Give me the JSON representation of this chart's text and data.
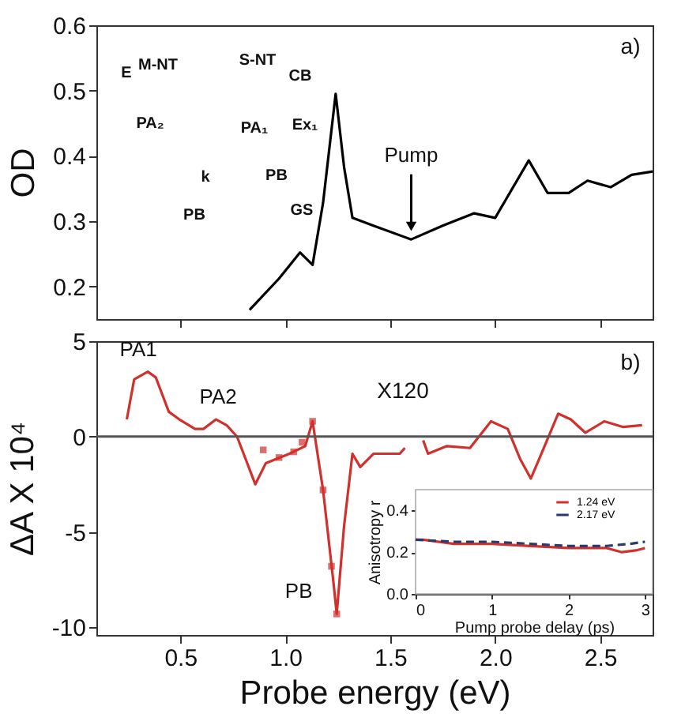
{
  "chart_data": [
    {
      "type": "line",
      "ylabel": "OD",
      "xlim": [
        0.1,
        2.75
      ],
      "ylim": [
        0.15,
        0.6
      ],
      "xticks": [
        0.5,
        1,
        1.5,
        2,
        2.5
      ],
      "yticks": [
        0.2,
        0.3,
        0.4,
        0.5,
        0.6
      ],
      "tick_labels": "y",
      "x": [
        0.83,
        0.97,
        1.07,
        1.13,
        1.18,
        1.24,
        1.28,
        1.32,
        1.42,
        1.6,
        1.75,
        1.9,
        2.0,
        2.16,
        2.25,
        2.35,
        2.44,
        2.55,
        2.65,
        2.75
      ],
      "series": [
        {
          "color": "#000000",
          "line_style": "solid",
          "values": [
            0.164,
            0.212,
            0.252,
            0.233,
            0.328,
            0.495,
            0.383,
            0.305,
            0.293,
            0.272,
            0.293,
            0.312,
            0.305,
            0.393,
            0.343,
            0.343,
            0.362,
            0.352,
            0.371,
            0.376
          ]
        }
      ],
      "annotations": [
        "a)",
        {
          "text": "Pump",
          "x": 1.6,
          "y": 0.275
        },
        "E",
        "M-NT",
        "PA₂",
        "k",
        "PB",
        "S-NT",
        "CB",
        "PA₁",
        "Ex₁",
        "PB",
        "GS"
      ]
    },
    {
      "type": "line",
      "xlabel": "Probe energy (eV)",
      "ylabel": "ΔA X 10⁴",
      "xlim": [
        0.1,
        2.75
      ],
      "ylim": [
        -10.4,
        5
      ],
      "xticks": [
        0.5,
        {
          "value": 1,
          "label": "1.0"
        },
        1.5,
        {
          "value": 2,
          "label": "2.0"
        },
        2.5
      ],
      "yticks": [
        -10,
        -5,
        0,
        5
      ],
      "series": [
        {
          "type": "line",
          "color": "#d0312d",
          "line_style": "solid",
          "x": [
            0.245,
            0.28,
            0.345,
            0.383,
            0.445,
            0.495,
            0.57,
            0.61,
            0.67,
            0.72,
            0.77,
            0.857,
            0.907,
            1.02,
            1.095,
            1.13,
            1.18,
            1.23,
            1.245,
            1.28,
            1.32,
            1.357,
            1.42,
            1.545,
            1.57,
            1.61,
            1.657,
            1.68,
            1.77,
            1.88,
            1.98,
            2.06,
            2.12,
            2.17,
            2.22,
            2.3,
            2.36,
            2.43,
            2.52,
            2.61,
            2.7
          ],
          "values": [
            0.9,
            3.0,
            3.4,
            3.1,
            1.3,
            0.9,
            0.4,
            0.4,
            0.9,
            0.6,
            0,
            -2.5,
            -1.4,
            -0.9,
            -0.5,
            0.8,
            -2.8,
            -7.7,
            -9.3,
            -4.7,
            -0.9,
            -1.6,
            -0.9,
            -0.9,
            -0.6,
            null,
            -0.2,
            -0.9,
            -0.5,
            -0.6,
            0.8,
            0.4,
            -1.2,
            -2.2,
            -0.9,
            1.2,
            0.9,
            0.2,
            0.8,
            0.5,
            0.6
          ]
        },
        {
          "type": "scatter",
          "marker": "square",
          "color": "#d0312d",
          "x": [
            0.895,
            0.97,
            1.04,
            1.08,
            1.13,
            1.18,
            1.22,
            1.245
          ],
          "values": [
            -0.7,
            -1.1,
            -0.8,
            -0.3,
            0.8,
            -2.8,
            -6.8,
            -9.3
          ]
        }
      ],
      "ref_lines": [
        {
          "axis": "y",
          "value": 0,
          "color": "#555555"
        }
      ],
      "annotations": [
        "b)",
        "X120",
        {
          "text": "PA1",
          "x": 0.3,
          "y": 3.4
        },
        {
          "text": "PA2",
          "x": 0.68,
          "y": 0.9
        },
        {
          "text": "PB",
          "x": 1.245,
          "y": -9.3
        }
      ]
    },
    {
      "type": "line",
      "xlabel": "Pump probe delay (ps)",
      "ylabel": "Anisotropy r",
      "xlim": [
        0,
        3.1
      ],
      "ylim": [
        0,
        0.5
      ],
      "xticks": [
        0,
        1,
        2,
        3
      ],
      "yticks": [
        {
          "value": 0,
          "label": "0.0"
        },
        0.2,
        0.4
      ],
      "legend": "top right",
      "series": [
        {
          "name": "1.24 eV",
          "color": "#d0312d",
          "line_style": "solid",
          "x": [
            0,
            0.1,
            0.5,
            1,
            1.5,
            2,
            2.5,
            2.7,
            2.9,
            3
          ],
          "values": [
            0.26,
            0.26,
            0.24,
            0.24,
            0.23,
            0.22,
            0.22,
            0.2,
            0.21,
            0.22
          ]
        },
        {
          "name": "2.17 eV",
          "color": "#2b3a6b",
          "line_style": "dashed",
          "x": [
            0,
            0.5,
            1,
            1.5,
            2,
            2.5,
            2.8,
            3
          ],
          "values": [
            0.26,
            0.25,
            0.25,
            0.24,
            0.23,
            0.23,
            0.24,
            0.25
          ]
        }
      ]
    }
  ]
}
